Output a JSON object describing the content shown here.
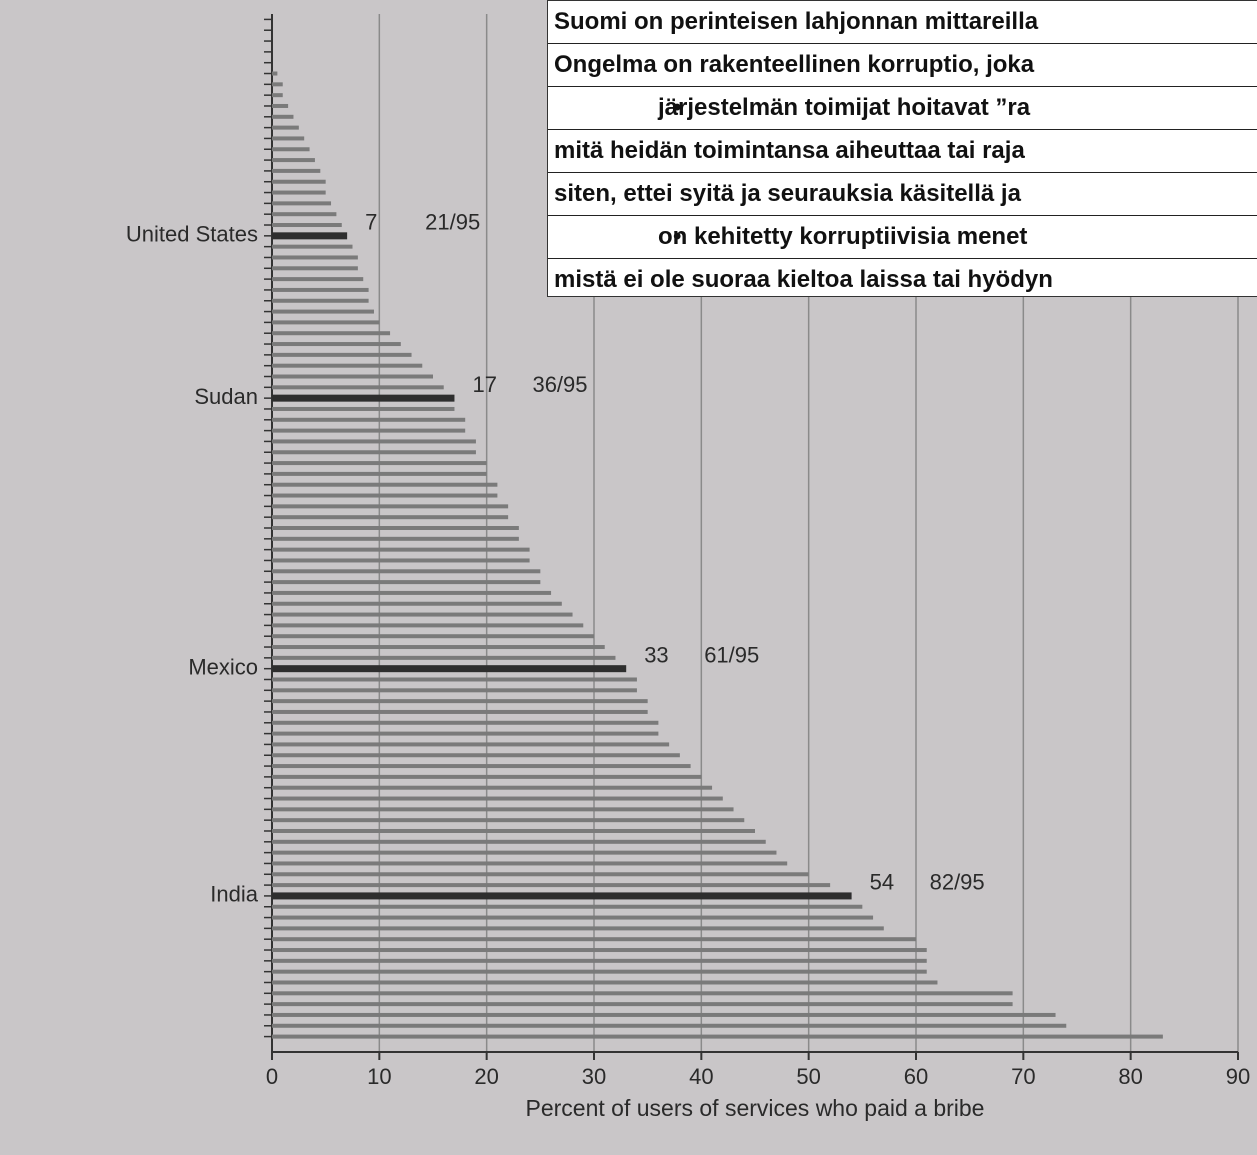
{
  "chart_data": {
    "type": "barh",
    "xlabel": "Percent of users of services who paid a bribe",
    "categories": [
      null,
      null,
      null,
      null,
      null,
      null,
      null,
      null,
      null,
      null,
      null,
      null,
      null,
      null,
      null,
      null,
      null,
      null,
      null,
      null,
      "United States",
      null,
      null,
      null,
      null,
      null,
      null,
      null,
      null,
      null,
      null,
      null,
      null,
      null,
      null,
      "Sudan",
      null,
      null,
      null,
      null,
      null,
      null,
      null,
      null,
      null,
      null,
      null,
      null,
      null,
      null,
      null,
      null,
      null,
      null,
      null,
      null,
      null,
      null,
      null,
      null,
      "Mexico",
      null,
      null,
      null,
      null,
      null,
      null,
      null,
      null,
      null,
      null,
      null,
      null,
      null,
      null,
      null,
      null,
      null,
      null,
      null,
      null,
      "India",
      null,
      null,
      null,
      null,
      null,
      null,
      null,
      null,
      null,
      null,
      null,
      null,
      null
    ],
    "values": [
      0,
      0,
      0,
      0,
      0,
      0.5,
      1,
      1,
      1.5,
      2,
      2.5,
      3,
      3.5,
      4,
      4.5,
      5,
      5,
      5.5,
      6,
      6.5,
      7,
      7.5,
      8,
      8,
      8.5,
      9,
      9,
      9.5,
      10,
      11,
      12,
      13,
      14,
      15,
      16,
      17,
      17,
      18,
      18,
      19,
      19,
      20,
      20,
      21,
      21,
      22,
      22,
      23,
      23,
      24,
      24,
      25,
      25,
      26,
      27,
      28,
      29,
      30,
      31,
      32,
      33,
      34,
      34,
      35,
      35,
      36,
      36,
      37,
      38,
      39,
      40,
      41,
      42,
      43,
      44,
      45,
      46,
      47,
      48,
      50,
      52,
      54,
      55,
      56,
      57,
      60,
      61,
      61,
      61,
      62,
      69,
      69,
      73,
      74,
      83
    ],
    "annotations": [
      "21/95",
      "36/95",
      "61/95",
      "82/95"
    ],
    "color": "#7a7a7a",
    "highlight_color": "#2e2e2e",
    "xlim": [
      0,
      90
    ],
    "xticks": [
      0,
      10,
      20,
      30,
      40,
      50,
      60,
      70,
      80,
      90
    ],
    "grid": true
  },
  "overlay": {
    "lines": [
      {
        "text": "Suomi on perinteisen lahjonnan mittareilla"
      },
      {
        "text": "Ongelma on rakenteellinen korruptio, joka"
      },
      {
        "text": "järjestelmän toimijat hoitavat ”ra",
        "bullet": true
      },
      {
        "text": "mitä  heidän toimintansa aiheuttaa tai raja"
      },
      {
        "text": "siten, ettei syitä ja seurauksia käsitellä ja"
      },
      {
        "text": "on kehitetty korruptiivisia menet",
        "bullet": true
      },
      {
        "text": "mistä ei ole suoraa kieltoa laissa tai hyödyn"
      }
    ]
  }
}
